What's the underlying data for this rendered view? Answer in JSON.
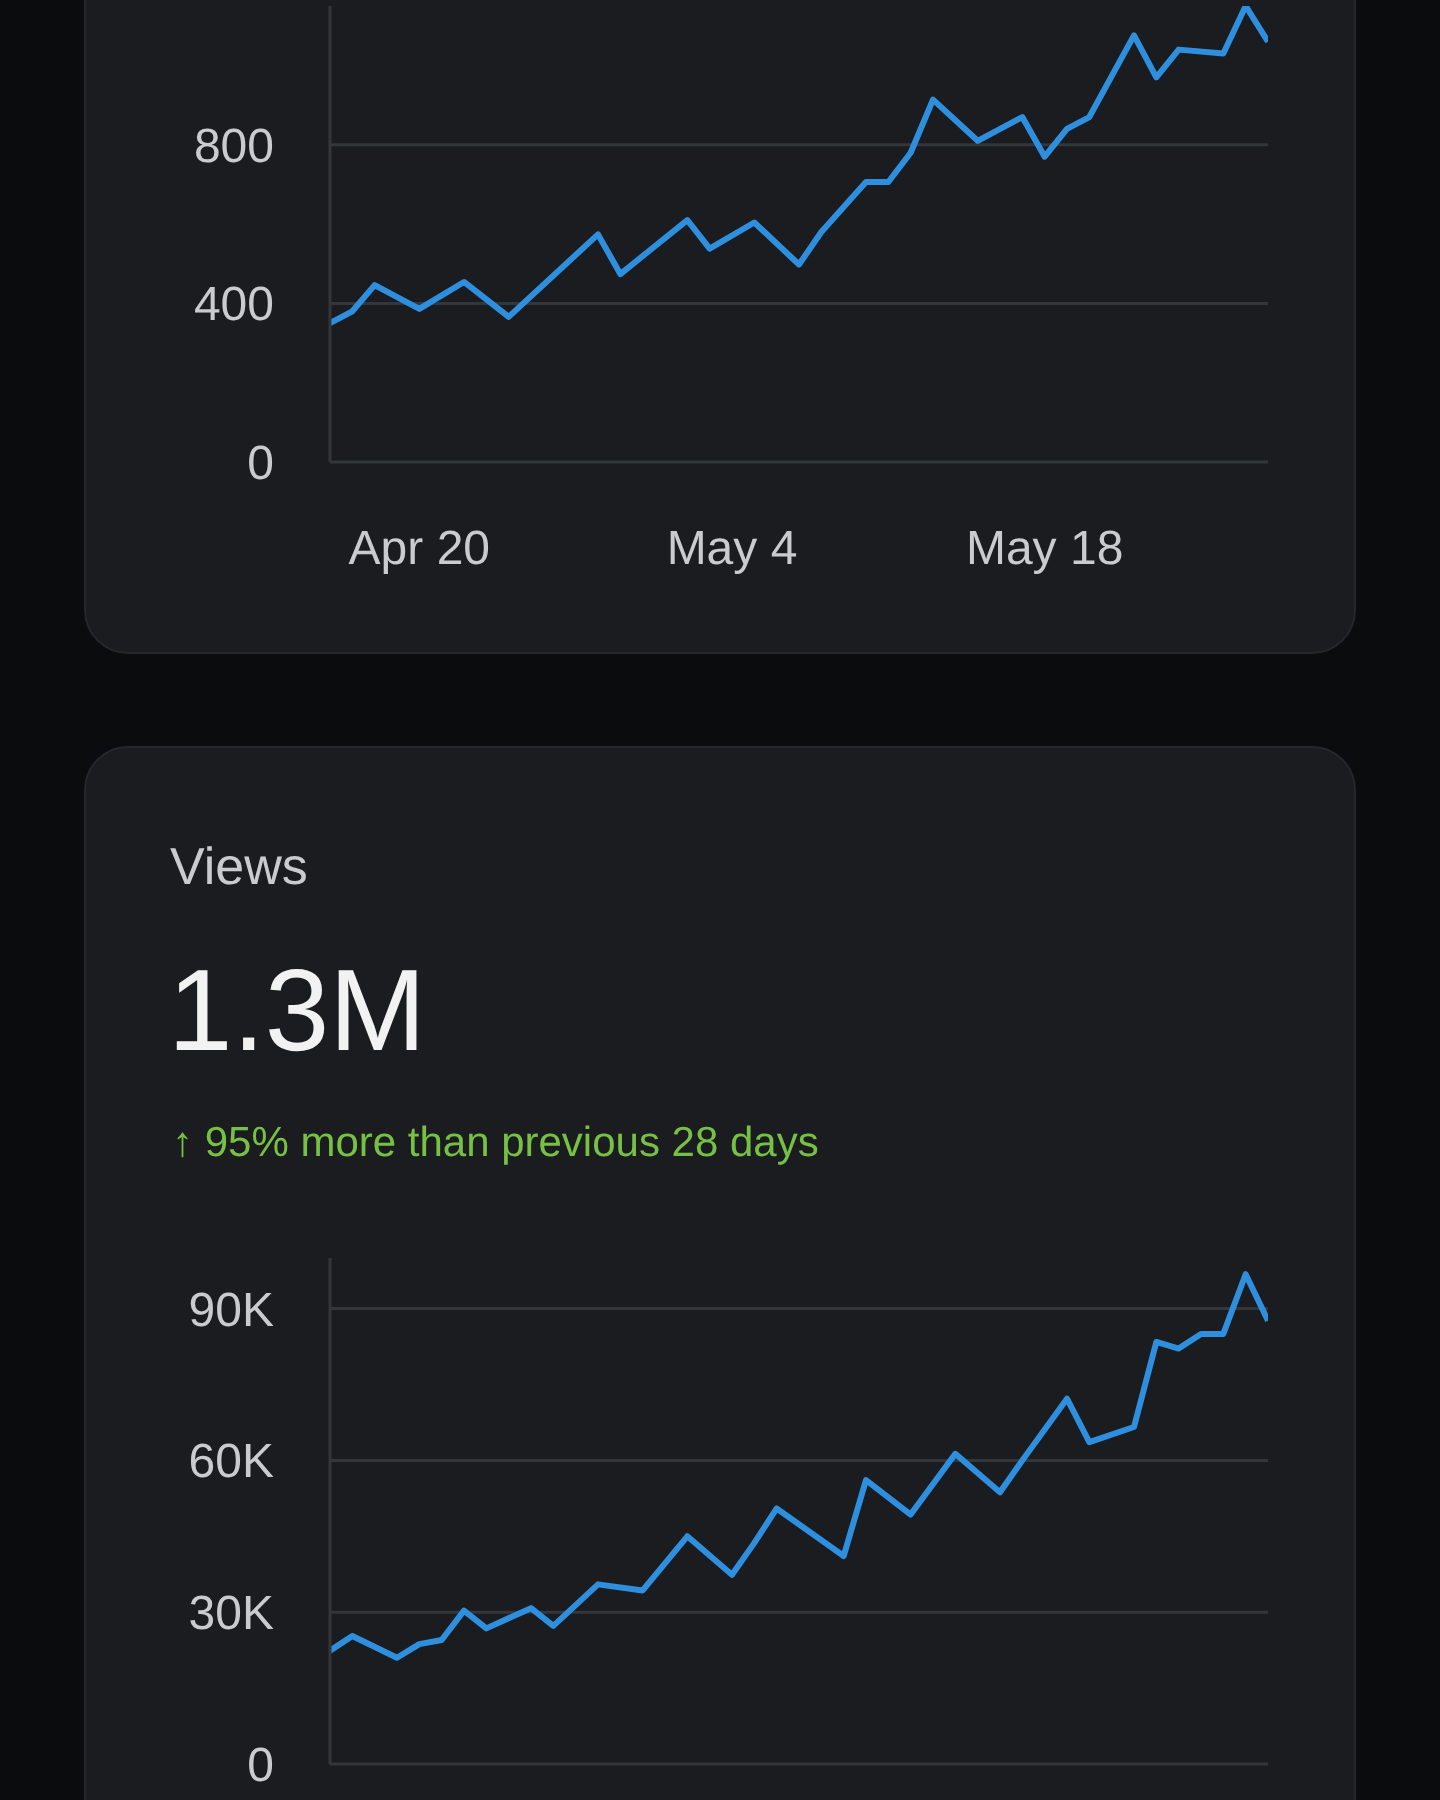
{
  "chart_data": [
    {
      "type": "line",
      "grid": "y",
      "xlim": [
        "--04-16",
        "--05-28"
      ],
      "ylim": [
        0,
        1150
      ],
      "yticks": [
        0,
        400,
        800
      ],
      "xticks": [
        {
          "value": "--04-20",
          "label": "Apr 20"
        },
        {
          "value": "--05-04",
          "label": "May 4"
        },
        {
          "value": "--05-18",
          "label": "May 18"
        }
      ],
      "series": [
        {
          "color": "#2f8fdf",
          "x": [
            "--04-16",
            "--04-17",
            "--04-18",
            "--04-20",
            "--04-22",
            "--04-24",
            "--04-28",
            "--04-29",
            "--05-02",
            "--05-03",
            "--05-05",
            "--05-07",
            "--05-08",
            "--05-10",
            "--05-11",
            "--05-12",
            "--05-13",
            "--05-15",
            "--05-17",
            "--05-18",
            "--05-19",
            "--05-20",
            "--05-22",
            "--05-23",
            "--05-24",
            "--05-26",
            "--05-27",
            "--05-28"
          ],
          "values": [
            350,
            380,
            446,
            386,
            454,
            366,
            574,
            474,
            610,
            538,
            604,
            498,
            580,
            706,
            706,
            780,
            914,
            810,
            870,
            770,
            840,
            870,
            1076,
            970,
            1040,
            1030,
            1150,
            1060
          ]
        }
      ]
    },
    {
      "type": "line",
      "title": "Views",
      "subtitle": "1.3M",
      "annotations": [
        "↑ 95% more than previous 28 days"
      ],
      "grid": "y",
      "tick_labels": "y",
      "xlim": [
        "--04-16",
        "--05-28"
      ],
      "ylim": [
        0,
        100000
      ],
      "yticks": [
        0,
        {
          "value": 30000,
          "label": "30K"
        },
        {
          "value": 60000,
          "label": "60K"
        },
        {
          "value": 90000,
          "label": "90K"
        }
      ],
      "series": [
        {
          "color": "#2f8fdf",
          "x": [
            "--04-16",
            "--04-17",
            "--04-19",
            "--04-20",
            "--04-21",
            "--04-22",
            "--04-23",
            "--04-25",
            "--04-26",
            "--04-28",
            "--04-30",
            "--05-02",
            "--05-04",
            "--05-05",
            "--05-06",
            "--05-09",
            "--05-10",
            "--05-12",
            "--05-14",
            "--05-16",
            "--05-17",
            "--05-19",
            "--05-20",
            "--05-22",
            "--05-23",
            "--05-24",
            "--05-25",
            "--05-26",
            "--05-27",
            "--05-28"
          ],
          "values": [
            22400,
            25300,
            21000,
            23700,
            24500,
            30300,
            26800,
            30800,
            27300,
            35500,
            34300,
            45000,
            37400,
            43700,
            50500,
            41100,
            56100,
            49300,
            61300,
            53700,
            60000,
            72200,
            63600,
            66600,
            83400,
            82100,
            85000,
            85000,
            96800,
            87600
          ]
        }
      ]
    }
  ]
}
